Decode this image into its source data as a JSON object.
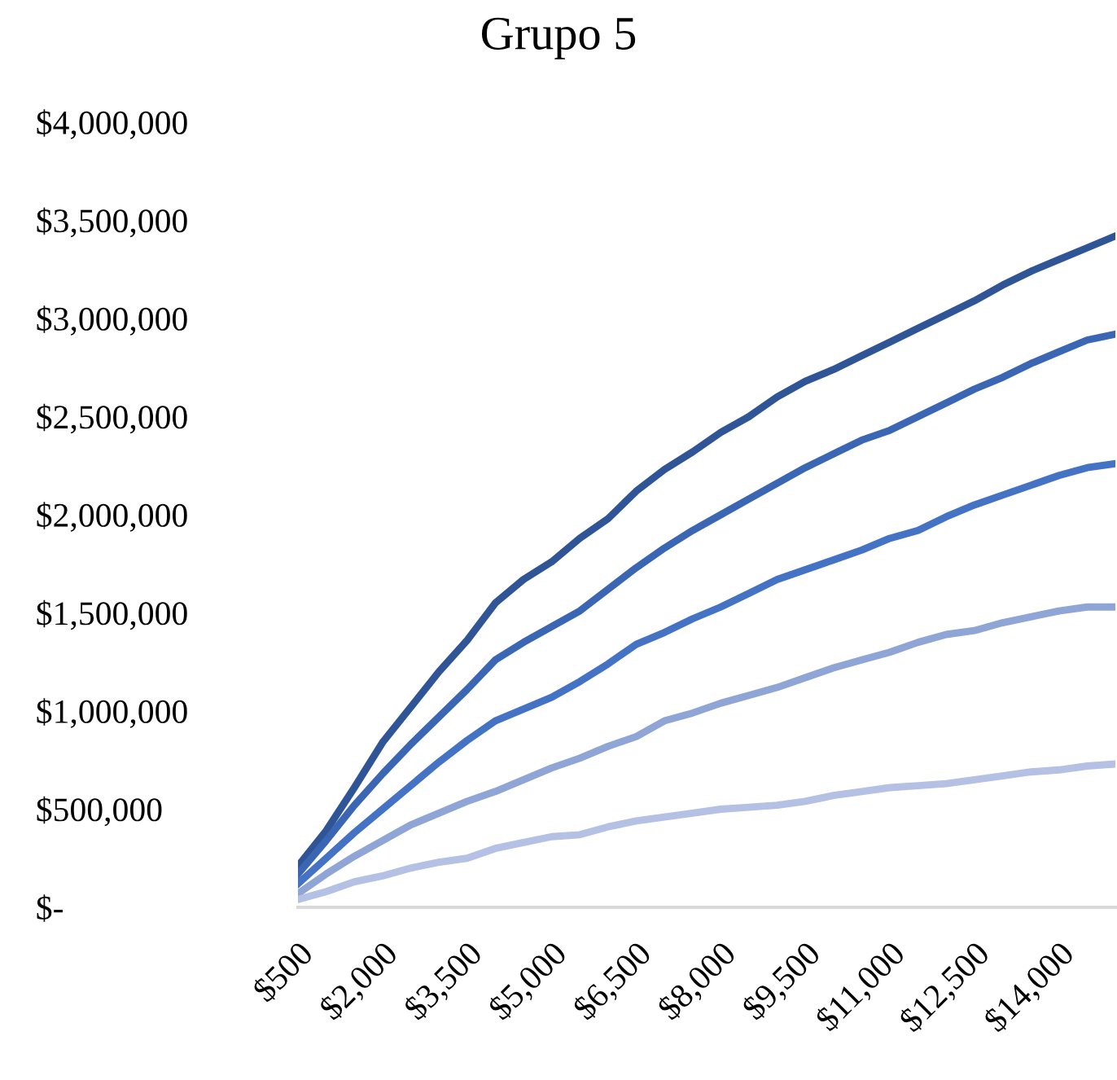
{
  "chart_data": {
    "type": "line",
    "title": "Grupo 5",
    "categories": [
      "$500",
      null,
      null,
      "$2,000",
      null,
      null,
      "$3,500",
      null,
      null,
      "$5,000",
      null,
      null,
      "$6,500",
      null,
      null,
      "$8,000",
      null,
      null,
      "$9,500",
      null,
      null,
      "$11,000",
      null,
      null,
      "$12,500",
      null,
      null,
      "$14,000",
      null,
      null
    ],
    "series": [
      {
        "color": "#2f5597",
        "values": [
          210000,
          390000,
          610000,
          840000,
          1020000,
          1200000,
          1360000,
          1550000,
          1670000,
          1760000,
          1880000,
          1980000,
          2120000,
          2230000,
          2320000,
          2420000,
          2500000,
          2600000,
          2680000,
          2740000,
          2810000,
          2880000,
          2950000,
          3020000,
          3090000,
          3170000,
          3240000,
          3300000,
          3360000,
          3420000
        ]
      },
      {
        "color": "#3a66b4",
        "values": [
          170000,
          340000,
          520000,
          680000,
          830000,
          970000,
          1110000,
          1260000,
          1350000,
          1430000,
          1510000,
          1620000,
          1730000,
          1830000,
          1920000,
          2000000,
          2080000,
          2160000,
          2240000,
          2310000,
          2380000,
          2430000,
          2500000,
          2570000,
          2640000,
          2700000,
          2770000,
          2830000,
          2890000,
          2920000
        ]
      },
      {
        "color": "#4472c4",
        "values": [
          120000,
          250000,
          380000,
          500000,
          620000,
          740000,
          850000,
          950000,
          1010000,
          1070000,
          1150000,
          1240000,
          1340000,
          1400000,
          1470000,
          1530000,
          1600000,
          1670000,
          1720000,
          1770000,
          1820000,
          1880000,
          1920000,
          1990000,
          2050000,
          2100000,
          2150000,
          2200000,
          2240000,
          2260000
        ]
      },
      {
        "color": "#8fa5d6",
        "values": [
          70000,
          170000,
          260000,
          340000,
          420000,
          480000,
          540000,
          590000,
          650000,
          710000,
          760000,
          820000,
          870000,
          950000,
          990000,
          1040000,
          1080000,
          1120000,
          1170000,
          1220000,
          1260000,
          1300000,
          1350000,
          1390000,
          1410000,
          1450000,
          1480000,
          1510000,
          1530000,
          1530000
        ]
      },
      {
        "color": "#b4c0e4",
        "values": [
          40000,
          80000,
          130000,
          160000,
          200000,
          230000,
          250000,
          300000,
          330000,
          360000,
          370000,
          410000,
          440000,
          460000,
          480000,
          500000,
          510000,
          520000,
          540000,
          570000,
          590000,
          610000,
          620000,
          630000,
          650000,
          670000,
          690000,
          700000,
          720000,
          730000
        ]
      }
    ],
    "ylim": [
      0,
      4000000
    ],
    "yticks": [
      {
        "value": 0,
        "label": "$-"
      },
      {
        "value": 500000,
        "label": "$500,000"
      },
      {
        "value": 1000000,
        "label": "$1,000,000"
      },
      {
        "value": 1500000,
        "label": "$1,500,000"
      },
      {
        "value": 2000000,
        "label": "$2,000,000"
      },
      {
        "value": 2500000,
        "label": "$2,500,000"
      },
      {
        "value": 3000000,
        "label": "$3,000,000"
      },
      {
        "value": 3500000,
        "label": "$3,500,000"
      },
      {
        "value": 4000000,
        "label": "$4,000,000"
      }
    ],
    "grid": false,
    "line_style": "solid",
    "marker": "none"
  }
}
